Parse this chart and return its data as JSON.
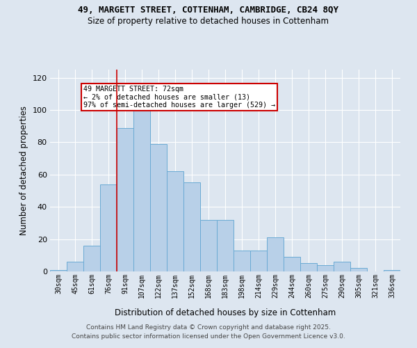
{
  "title_line1": "49, MARGETT STREET, COTTENHAM, CAMBRIDGE, CB24 8QY",
  "title_line2": "Size of property relative to detached houses in Cottenham",
  "xlabel": "Distribution of detached houses by size in Cottenham",
  "ylabel": "Number of detached properties",
  "categories": [
    "30sqm",
    "45sqm",
    "61sqm",
    "76sqm",
    "91sqm",
    "107sqm",
    "122sqm",
    "137sqm",
    "152sqm",
    "168sqm",
    "183sqm",
    "198sqm",
    "214sqm",
    "229sqm",
    "244sqm",
    "260sqm",
    "275sqm",
    "290sqm",
    "305sqm",
    "321sqm",
    "336sqm"
  ],
  "values": [
    1,
    6,
    16,
    54,
    89,
    100,
    79,
    62,
    55,
    32,
    32,
    13,
    13,
    21,
    9,
    5,
    4,
    6,
    2,
    0,
    1
  ],
  "bar_color": "#b8d0e8",
  "bar_edge_color": "#6aaad4",
  "background_color": "#dde6f0",
  "grid_color": "#ffffff",
  "annotation_text": "49 MARGETT STREET: 72sqm\n← 2% of detached houses are smaller (13)\n97% of semi-detached houses are larger (529) →",
  "annotation_box_color": "#ffffff",
  "annotation_box_edge_color": "#cc0000",
  "vline_x": 3.5,
  "vline_color": "#cc0000",
  "ylim": [
    0,
    125
  ],
  "yticks": [
    0,
    20,
    40,
    60,
    80,
    100,
    120
  ],
  "footer_line1": "Contains HM Land Registry data © Crown copyright and database right 2025.",
  "footer_line2": "Contains public sector information licensed under the Open Government Licence v3.0."
}
